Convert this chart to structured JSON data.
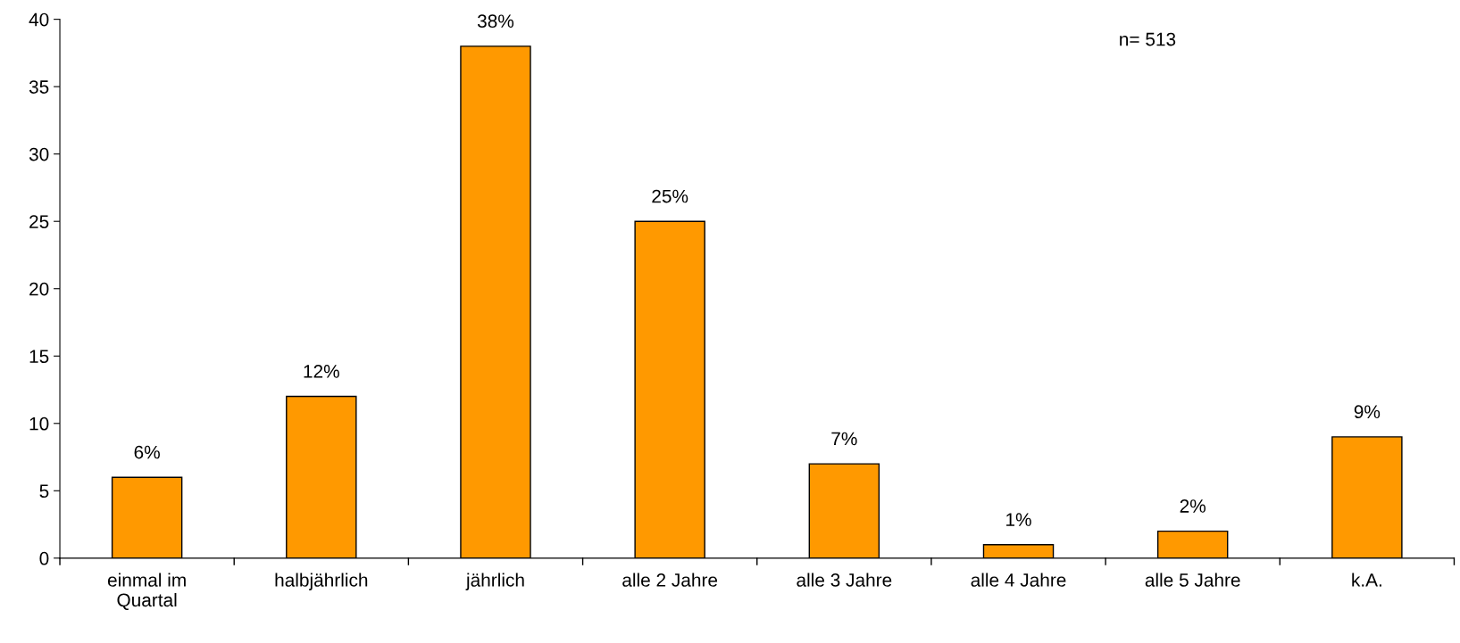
{
  "chart_data": {
    "type": "bar",
    "categories": [
      "einmal im\nQuartal",
      "halbjährlich",
      "jährlich",
      "alle 2 Jahre",
      "alle 3 Jahre",
      "alle 4 Jahre",
      "alle 5 Jahre",
      "k.A."
    ],
    "values": [
      6,
      12,
      38,
      25,
      7,
      1,
      2,
      9
    ],
    "value_labels": [
      "6%",
      "12%",
      "38%",
      "25%",
      "7%",
      "1%",
      "2%",
      "9%"
    ],
    "color": "#ff9900",
    "ylim": [
      0,
      40
    ],
    "yticks": [
      0,
      5,
      10,
      15,
      20,
      25,
      30,
      35,
      40
    ],
    "annotations": [
      "n= 513"
    ],
    "grid": false,
    "legend": false
  }
}
